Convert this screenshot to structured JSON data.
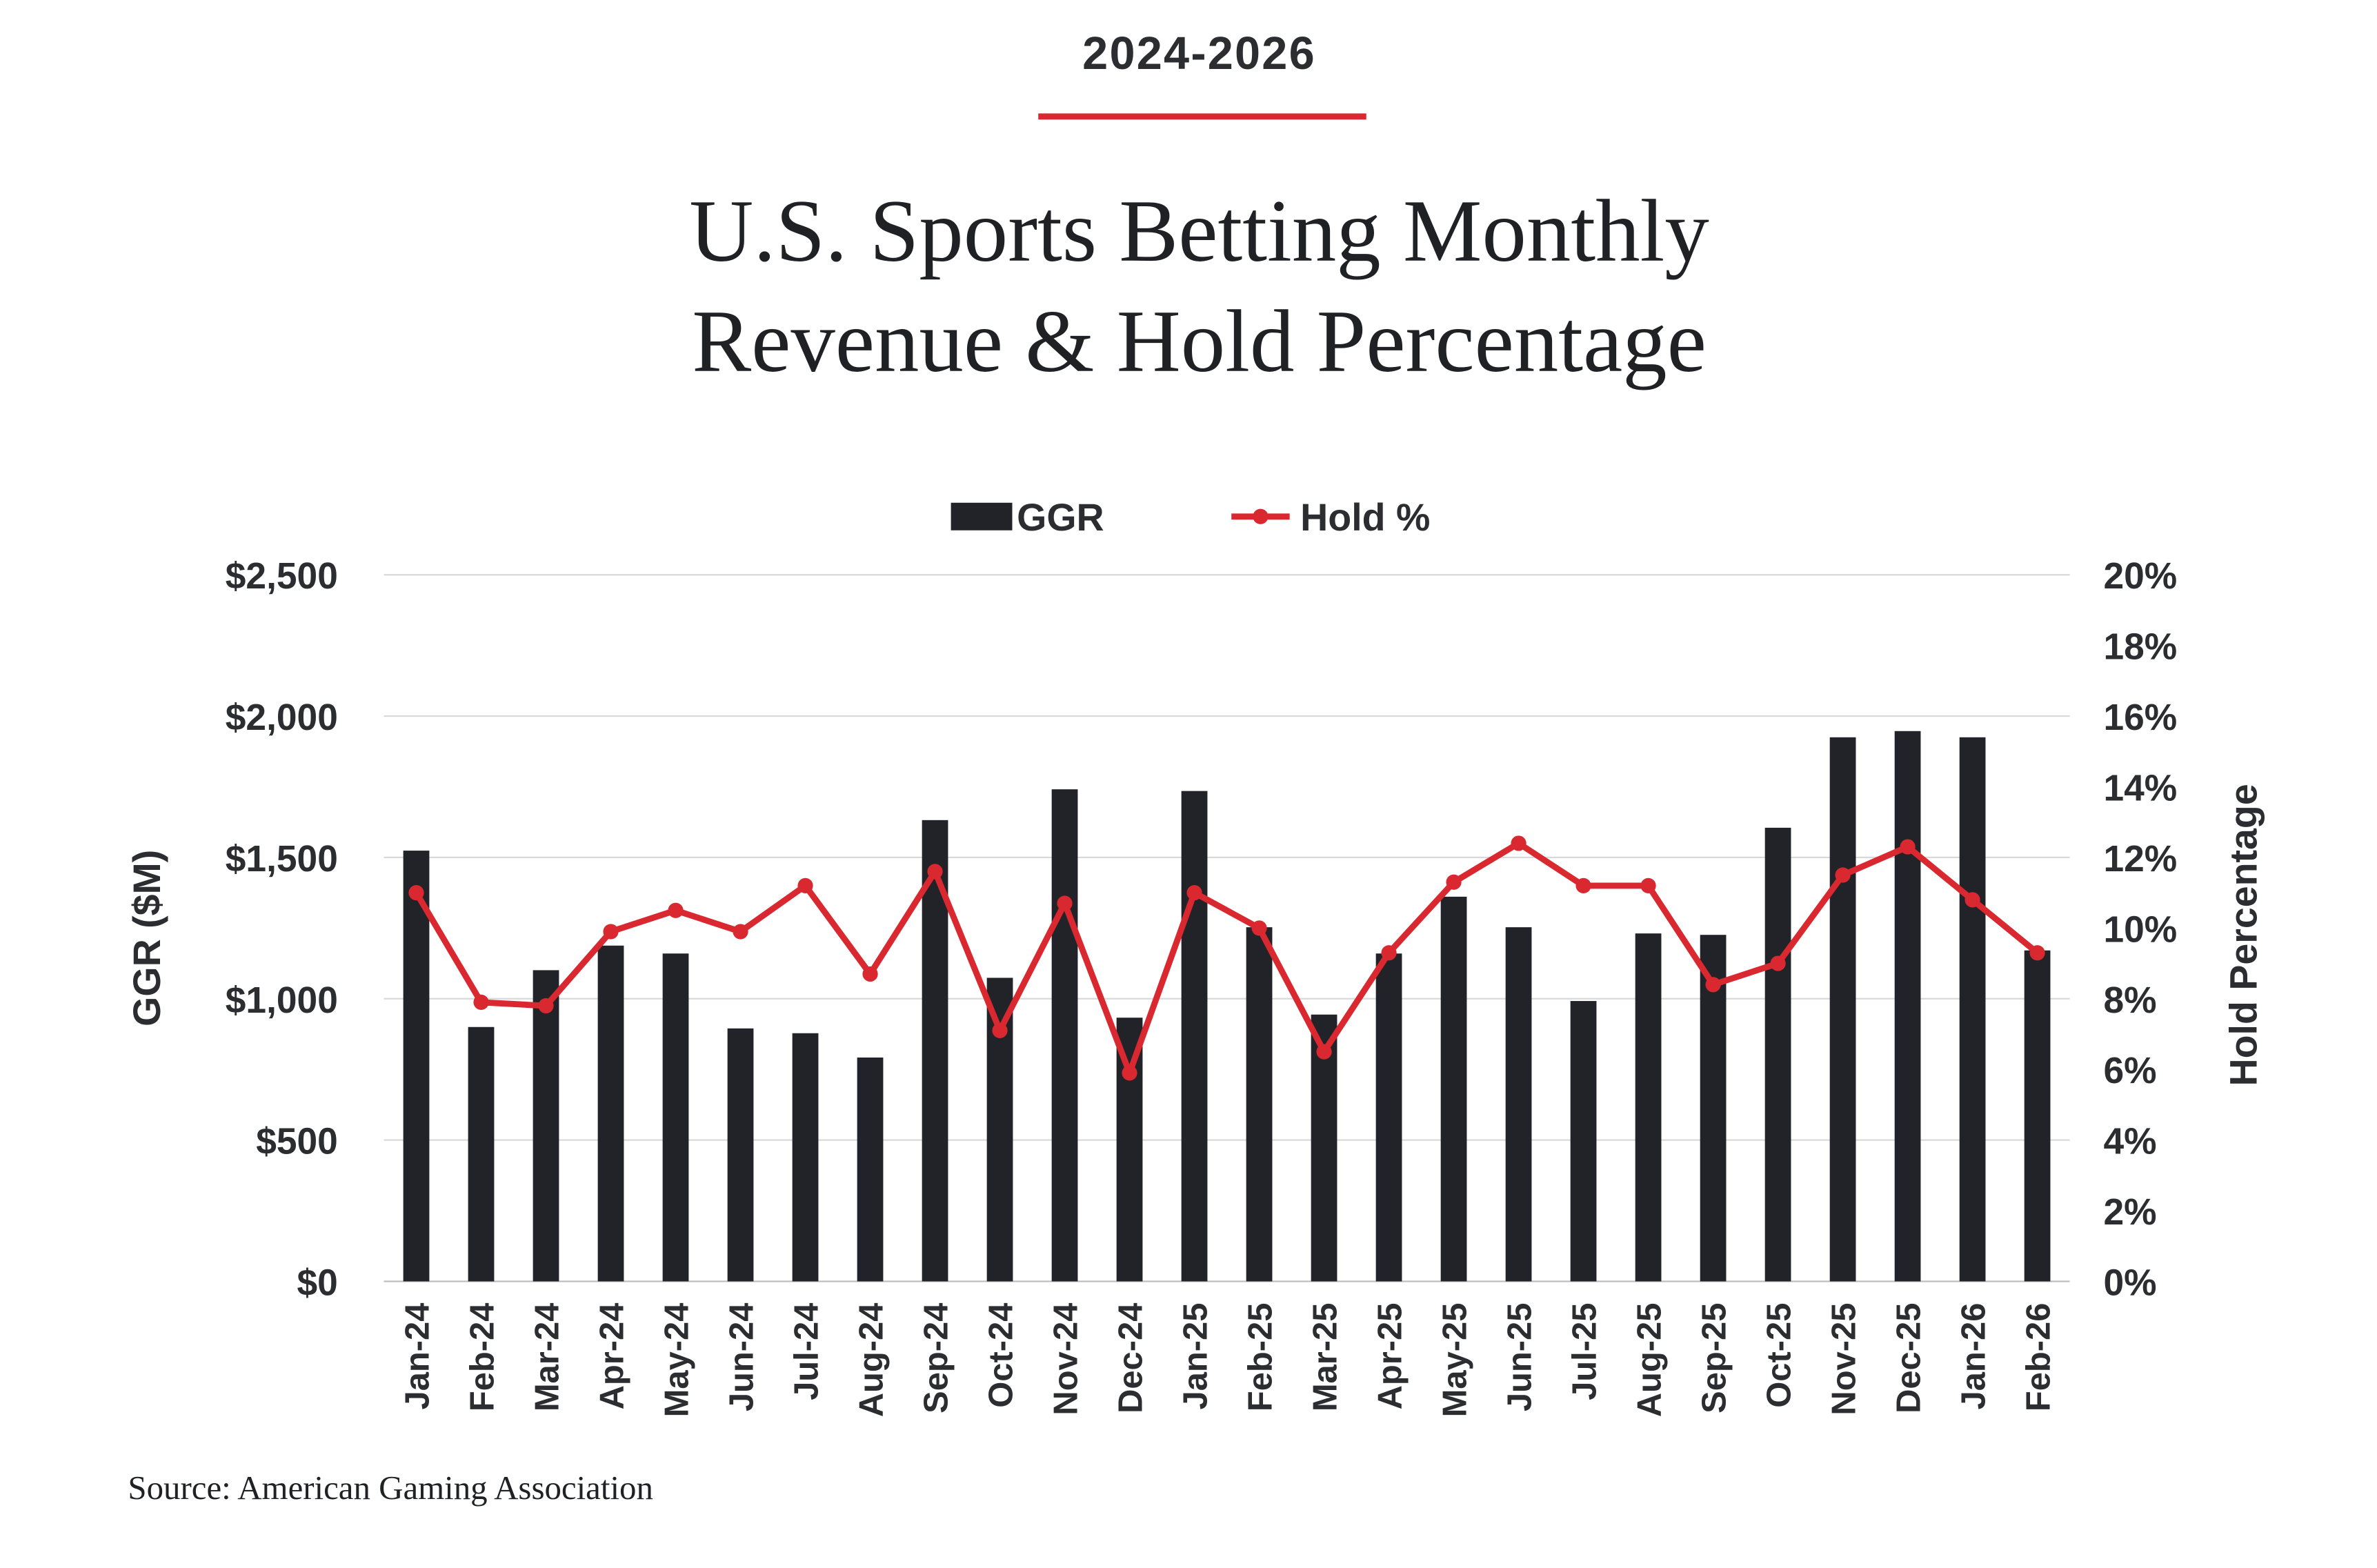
{
  "header": {
    "eyebrow": "2024-2026",
    "title_line1": "U.S. Sports Betting Monthly",
    "title_line2": "Revenue & Hold Percentage"
  },
  "source": "Source: American Gaming Association",
  "colors": {
    "bars": "#212328",
    "line": "#d9282f",
    "grid": "#d9d9d9",
    "text": "#2b2d31"
  },
  "chart_data": {
    "type": "bar+line",
    "title": "U.S. Sports Betting Monthly Revenue & Hold Percentage",
    "ylabel": "GGR ($M)",
    "y2label": "Hold Percentage",
    "ylim": [
      0,
      2500
    ],
    "y2lim": [
      0,
      20
    ],
    "yticks": [
      "$0",
      "$500",
      "$1,000",
      "$1,500",
      "$2,000",
      "$2,500"
    ],
    "y2ticks": [
      "0%",
      "2%",
      "4%",
      "6%",
      "8%",
      "10%",
      "12%",
      "14%",
      "16%",
      "18%",
      "20%"
    ],
    "grid": true,
    "legend_position": "top-center",
    "categories": [
      "Jan-24",
      "Feb-24",
      "Mar-24",
      "Apr-24",
      "May-24",
      "Jun-24",
      "Jul-24",
      "Aug-24",
      "Sep-24",
      "Oct-24",
      "Nov-24",
      "Dec-24",
      "Jan-25",
      "Feb-25",
      "Mar-25",
      "Apr-25",
      "May-25",
      "Jun-25",
      "Jul-25",
      "Aug-25",
      "Sep-25",
      "Oct-25",
      "Nov-25",
      "Dec-25",
      "Jan-26",
      "Feb-26"
    ],
    "series": [
      {
        "name": "GGR",
        "type": "bar",
        "axis": "left",
        "values": [
          1524,
          900,
          1101,
          1188,
          1160,
          895,
          878,
          792,
          1632,
          1074,
          1741,
          933,
          1735,
          1253,
          944,
          1160,
          1361,
          1253,
          992,
          1231,
          1226,
          1605,
          1925,
          1947,
          1925,
          1171
        ]
      },
      {
        "name": "Hold %",
        "type": "line",
        "axis": "right",
        "values": [
          11.0,
          7.9,
          7.8,
          9.9,
          10.5,
          9.9,
          11.2,
          8.7,
          11.6,
          7.1,
          10.7,
          5.9,
          11.0,
          10.0,
          6.5,
          9.3,
          11.3,
          12.4,
          11.2,
          11.2,
          8.4,
          9.0,
          11.5,
          12.3,
          10.8,
          9.3
        ]
      }
    ]
  }
}
